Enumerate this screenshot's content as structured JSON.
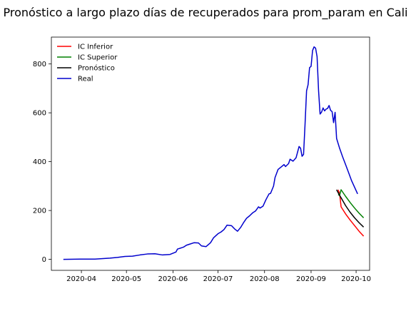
{
  "chart_data": {
    "type": "line",
    "title": "Pronóstico a largo plazo días de recuperados para prom_param en Cali",
    "xlabel": "",
    "ylabel": "",
    "grid": false,
    "legend_position": "upper-left",
    "x_axis": {
      "range": [
        "2020-03-12",
        "2020-10-10"
      ],
      "ticks": [
        "2020-04-01",
        "2020-05-01",
        "2020-06-01",
        "2020-07-01",
        "2020-08-01",
        "2020-09-01",
        "2020-10-01"
      ],
      "tick_labels": [
        "2020-04",
        "2020-05",
        "2020-06",
        "2020-07",
        "2020-08",
        "2020-09",
        "2020-10"
      ]
    },
    "y_axis": {
      "range": [
        -45,
        910
      ],
      "ticks": [
        0,
        200,
        400,
        600,
        800
      ],
      "tick_labels": [
        "0",
        "200",
        "400",
        "600",
        "800"
      ]
    },
    "series": [
      {
        "name": "IC Inferior",
        "color": "#ff0000",
        "points": [
          [
            "2020-09-19",
            285
          ],
          [
            "2020-09-20",
            270
          ],
          [
            "2020-09-21",
            215
          ],
          [
            "2020-09-24",
            186
          ],
          [
            "2020-09-27",
            161
          ],
          [
            "2020-09-30",
            138
          ],
          [
            "2020-10-03",
            115
          ],
          [
            "2020-10-06",
            95
          ]
        ]
      },
      {
        "name": "IC Superior",
        "color": "#008000",
        "points": [
          [
            "2020-09-19",
            265
          ],
          [
            "2020-09-20",
            262
          ],
          [
            "2020-09-21",
            285
          ],
          [
            "2020-09-24",
            258
          ],
          [
            "2020-09-27",
            233
          ],
          [
            "2020-09-30",
            210
          ],
          [
            "2020-10-03",
            189
          ],
          [
            "2020-10-06",
            170
          ]
        ]
      },
      {
        "name": "Pronóstico",
        "color": "#000000",
        "points": [
          [
            "2020-09-18",
            285
          ],
          [
            "2020-09-20",
            262
          ],
          [
            "2020-09-21",
            252
          ],
          [
            "2020-09-24",
            220
          ],
          [
            "2020-09-27",
            193
          ],
          [
            "2020-09-30",
            170
          ],
          [
            "2020-10-03",
            150
          ],
          [
            "2020-10-06",
            132
          ]
        ]
      },
      {
        "name": "Real",
        "color": "#0000cd",
        "points": [
          [
            "2020-03-20",
            0
          ],
          [
            "2020-03-31",
            1
          ],
          [
            "2020-04-10",
            1
          ],
          [
            "2020-04-20",
            5
          ],
          [
            "2020-04-25",
            8
          ],
          [
            "2020-04-30",
            12
          ],
          [
            "2020-05-05",
            13
          ],
          [
            "2020-05-10",
            18
          ],
          [
            "2020-05-15",
            22
          ],
          [
            "2020-05-20",
            23
          ],
          [
            "2020-05-25",
            18
          ],
          [
            "2020-05-30",
            20
          ],
          [
            "2020-06-03",
            30
          ],
          [
            "2020-06-04",
            42
          ],
          [
            "2020-06-08",
            50
          ],
          [
            "2020-06-10",
            58
          ],
          [
            "2020-06-12",
            62
          ],
          [
            "2020-06-15",
            68
          ],
          [
            "2020-06-18",
            67
          ],
          [
            "2020-06-20",
            55
          ],
          [
            "2020-06-23",
            52
          ],
          [
            "2020-06-26",
            68
          ],
          [
            "2020-06-28",
            88
          ],
          [
            "2020-07-01",
            105
          ],
          [
            "2020-07-03",
            112
          ],
          [
            "2020-07-05",
            122
          ],
          [
            "2020-07-07",
            140
          ],
          [
            "2020-07-10",
            138
          ],
          [
            "2020-07-12",
            125
          ],
          [
            "2020-07-14",
            115
          ],
          [
            "2020-07-16",
            130
          ],
          [
            "2020-07-18",
            150
          ],
          [
            "2020-07-20",
            168
          ],
          [
            "2020-07-22",
            178
          ],
          [
            "2020-07-24",
            190
          ],
          [
            "2020-07-26",
            198
          ],
          [
            "2020-07-28",
            215
          ],
          [
            "2020-07-29",
            210
          ],
          [
            "2020-07-31",
            218
          ],
          [
            "2020-08-02",
            245
          ],
          [
            "2020-08-04",
            268
          ],
          [
            "2020-08-05",
            270
          ],
          [
            "2020-08-07",
            300
          ],
          [
            "2020-08-08",
            335
          ],
          [
            "2020-08-10",
            368
          ],
          [
            "2020-08-12",
            378
          ],
          [
            "2020-08-14",
            388
          ],
          [
            "2020-08-15",
            380
          ],
          [
            "2020-08-17",
            392
          ],
          [
            "2020-08-18",
            410
          ],
          [
            "2020-08-20",
            402
          ],
          [
            "2020-08-22",
            416
          ],
          [
            "2020-08-24",
            462
          ],
          [
            "2020-08-25",
            455
          ],
          [
            "2020-08-26",
            422
          ],
          [
            "2020-08-27",
            430
          ],
          [
            "2020-08-28",
            555
          ],
          [
            "2020-08-29",
            690
          ],
          [
            "2020-08-30",
            715
          ],
          [
            "2020-08-31",
            785
          ],
          [
            "2020-09-01",
            790
          ],
          [
            "2020-09-02",
            855
          ],
          [
            "2020-09-03",
            870
          ],
          [
            "2020-09-04",
            865
          ],
          [
            "2020-09-05",
            830
          ],
          [
            "2020-09-06",
            690
          ],
          [
            "2020-09-07",
            595
          ],
          [
            "2020-09-08",
            603
          ],
          [
            "2020-09-09",
            620
          ],
          [
            "2020-09-10",
            608
          ],
          [
            "2020-09-11",
            615
          ],
          [
            "2020-09-12",
            618
          ],
          [
            "2020-09-13",
            630
          ],
          [
            "2020-09-14",
            610
          ],
          [
            "2020-09-15",
            605
          ],
          [
            "2020-09-16",
            560
          ],
          [
            "2020-09-17",
            602
          ],
          [
            "2020-09-18",
            495
          ],
          [
            "2020-09-20",
            455
          ],
          [
            "2020-09-22",
            420
          ],
          [
            "2020-09-24",
            388
          ],
          [
            "2020-09-26",
            355
          ],
          [
            "2020-09-28",
            322
          ],
          [
            "2020-09-30",
            295
          ],
          [
            "2020-10-02",
            268
          ]
        ]
      }
    ]
  }
}
